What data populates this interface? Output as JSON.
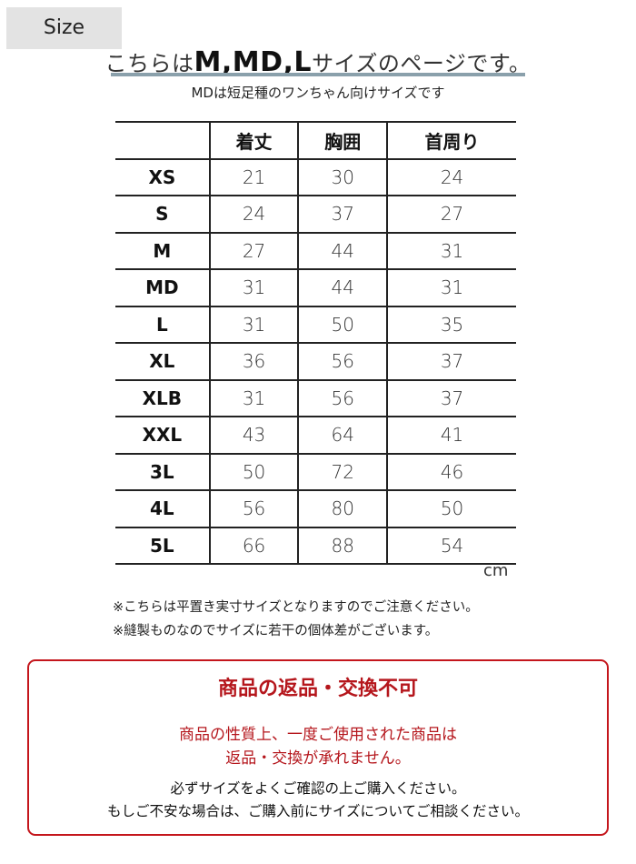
{
  "size_tag": "Size",
  "headline": {
    "prefix": "こちらは",
    "sizes": "M,MD,L",
    "suffix": "サイズのページです。"
  },
  "subtitle": "MDは短足種のワンちゃん向けサイズです",
  "table": {
    "headers": [
      "",
      "着丈",
      "胸囲",
      "首周り"
    ],
    "rows": [
      [
        "XS",
        "21",
        "30",
        "24"
      ],
      [
        "S",
        "24",
        "37",
        "27"
      ],
      [
        "M",
        "27",
        "44",
        "31"
      ],
      [
        "MD",
        "31",
        "44",
        "31"
      ],
      [
        "L",
        "31",
        "50",
        "35"
      ],
      [
        "XL",
        "36",
        "56",
        "37"
      ],
      [
        "XLB",
        "31",
        "56",
        "37"
      ],
      [
        "XXL",
        "43",
        "64",
        "41"
      ],
      [
        "3L",
        "50",
        "72",
        "46"
      ],
      [
        "4L",
        "56",
        "80",
        "50"
      ],
      [
        "5L",
        "66",
        "88",
        "54"
      ]
    ],
    "unit": "cm"
  },
  "notes": [
    "※こちらは平置き実寸サイズとなりますのでご注意ください。",
    "※縫製ものなのでサイズに若干の個体差がございます。"
  ],
  "notice": {
    "title": "商品の返品・交換不可",
    "red_lines": [
      "商品の性質上、一度ご使用された商品は",
      "返品・交換が承れません。"
    ],
    "lines": [
      "必ずサイズをよくご確認の上ご購入ください。",
      "もしご不安な場合は、ご購入前にサイズについてご相談ください。"
    ],
    "color": "#c4161c"
  }
}
